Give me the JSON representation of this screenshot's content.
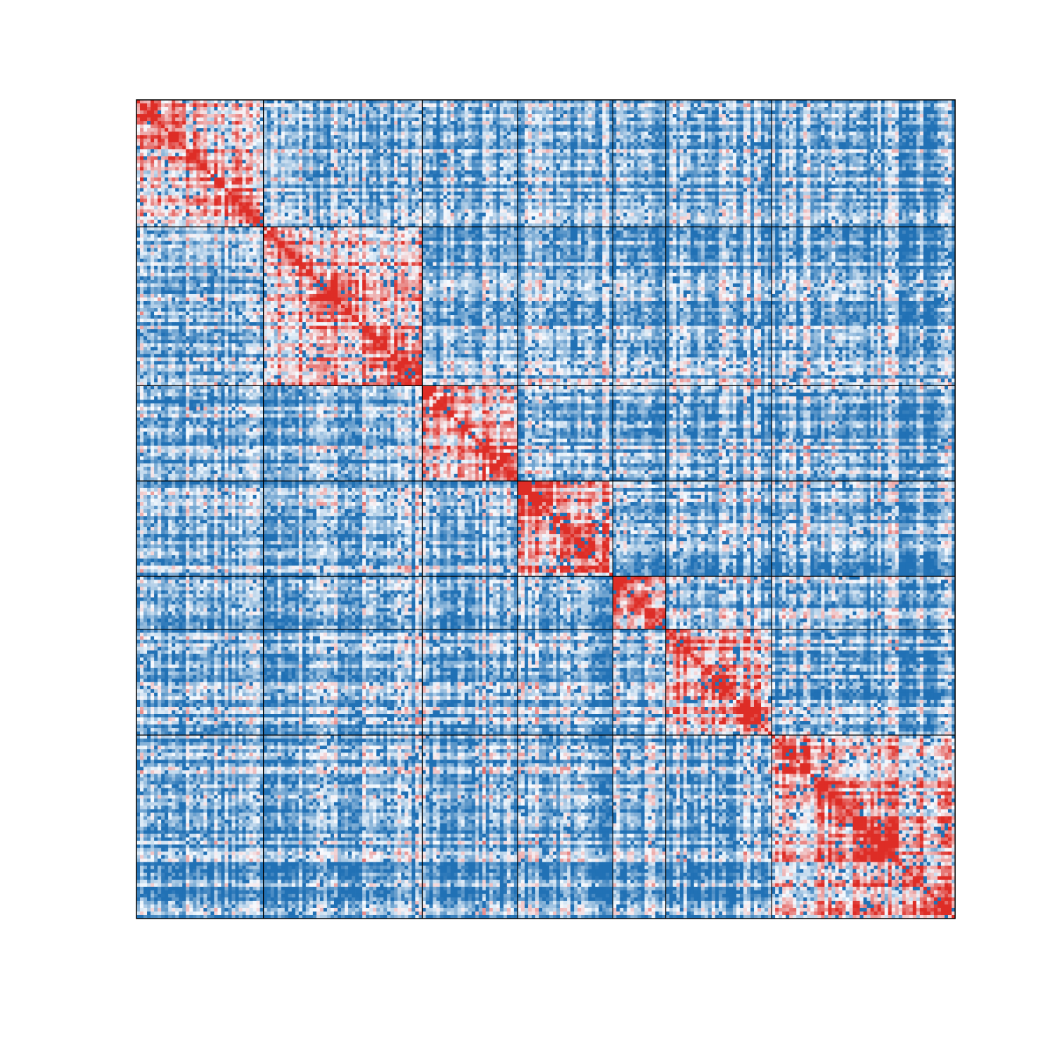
{
  "chart_data": {
    "type": "heatmap",
    "title": "",
    "xlabel": "",
    "ylabel": "",
    "grid": false,
    "legend": "none",
    "matrix_size": 232,
    "block_sizes": [
      36,
      45,
      27,
      27,
      15,
      30,
      52
    ],
    "colors": {
      "low": "#2171b5",
      "mid": "#f7fbff",
      "high": "#de2d26",
      "frame": "#000000"
    },
    "value_range": [
      -1,
      1
    ],
    "within_block_mean": 0.25,
    "between_block_mean": -0.45,
    "diagonal_value": 1.0,
    "seed": 17
  }
}
